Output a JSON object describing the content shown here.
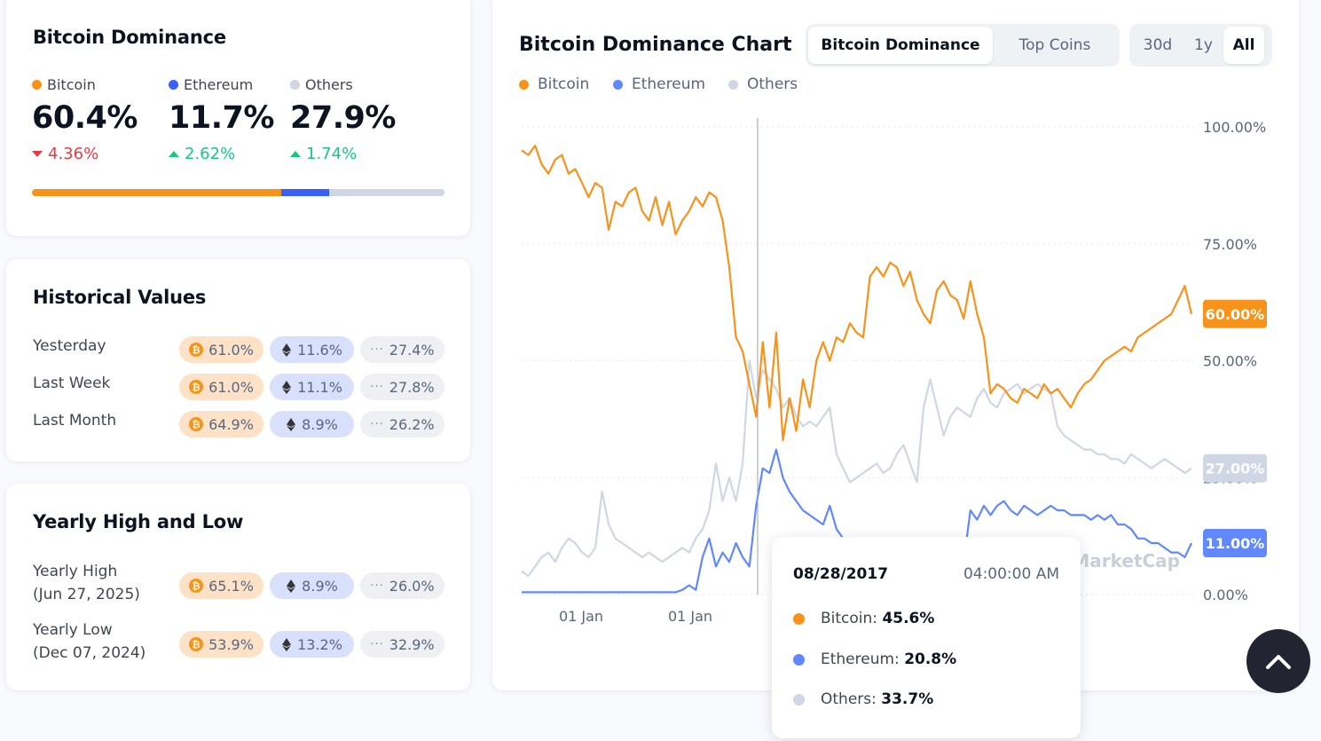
{
  "dominance": {
    "title": "Bitcoin Dominance",
    "items": [
      {
        "label": "Bitcoin",
        "value": "60.4%",
        "change": "4.36%",
        "direction": "down",
        "color": "#f7931a"
      },
      {
        "label": "Ethereum",
        "value": "11.7%",
        "change": "2.62%",
        "direction": "up",
        "color": "#3861fb"
      },
      {
        "label": "Others",
        "value": "27.9%",
        "change": "1.74%",
        "direction": "up",
        "color": "#cfd6e4"
      }
    ],
    "bar_fractions": [
      0.604,
      0.117,
      0.279
    ]
  },
  "historical": {
    "title": "Historical Values",
    "rows": [
      {
        "label": "Yesterday",
        "btc": "61.0%",
        "eth": "11.6%",
        "others": "27.4%"
      },
      {
        "label": "Last Week",
        "btc": "61.0%",
        "eth": "11.1%",
        "others": "27.8%"
      },
      {
        "label": "Last Month",
        "btc": "64.9%",
        "eth": "8.9%",
        "others": "26.2%"
      }
    ]
  },
  "yearly": {
    "title": "Yearly High and Low",
    "rows": [
      {
        "label": "Yearly High",
        "date": "(Jun 27, 2025)",
        "btc": "65.1%",
        "eth": "8.9%",
        "others": "26.0%"
      },
      {
        "label": "Yearly Low",
        "date": "(Dec 07, 2024)",
        "btc": "53.9%",
        "eth": "13.2%",
        "others": "32.9%"
      }
    ]
  },
  "chart_panel": {
    "title": "Bitcoin Dominance Chart",
    "view_tabs": [
      "Bitcoin Dominance",
      "Top Coins"
    ],
    "active_view": "Bitcoin Dominance",
    "range_tabs": [
      "30d",
      "1y",
      "All"
    ],
    "active_range": "All",
    "legend": [
      "Bitcoin",
      "Ethereum",
      "Others"
    ],
    "watermark": "CoinMarketCap",
    "tooltip": {
      "date": "08/28/2017",
      "time": "04:00:00 AM",
      "rows": [
        {
          "label": "Bitcoin:",
          "value": "45.6%",
          "color": "#f7931a"
        },
        {
          "label": "Ethereum:",
          "value": "20.8%",
          "color": "#6188ff"
        },
        {
          "label": "Others:",
          "value": "33.7%",
          "color": "#cfd6e4"
        }
      ]
    }
  },
  "chart_data": {
    "type": "line",
    "ylim": [
      0,
      100
    ],
    "y_ticks": [
      "100.00%",
      "75.00%",
      "50.00%",
      "25.00%",
      "0.00%"
    ],
    "x_ticks": [
      "01 Jan",
      "01 Jan"
    ],
    "last_value_labels": [
      "60.00%",
      "27.00%",
      "11.00%"
    ],
    "series": [
      {
        "name": "Bitcoin",
        "color": "#f7931a",
        "values": [
          95,
          94,
          96,
          92,
          90,
          93,
          94,
          90,
          91,
          88,
          85,
          88,
          87,
          78,
          84,
          83,
          86,
          87,
          82,
          80,
          85,
          79,
          84,
          77,
          80,
          82,
          85,
          83,
          86,
          85,
          80,
          70,
          55,
          52,
          45,
          38,
          54,
          40,
          56,
          33,
          42,
          35,
          46,
          40,
          50,
          54,
          50,
          55,
          54,
          58,
          56,
          55,
          68,
          70,
          68,
          71,
          70,
          66,
          69,
          63,
          60,
          58,
          65,
          67,
          64,
          63,
          59,
          67,
          60,
          55,
          43,
          45,
          44,
          42,
          41,
          44,
          43,
          42,
          45,
          43,
          44,
          42,
          40,
          43,
          45,
          46,
          48,
          50,
          51,
          52,
          53,
          52,
          55,
          56,
          57,
          58,
          59,
          60,
          63,
          66,
          60
        ]
      },
      {
        "name": "Ethereum",
        "color": "#6188ff",
        "values": [
          0.5,
          0.5,
          0.5,
          0.5,
          0.5,
          0.5,
          0.5,
          0.5,
          0.5,
          0.5,
          0.5,
          0.5,
          0.5,
          0.5,
          0.5,
          0.5,
          0.5,
          0.5,
          0.5,
          0.5,
          0.5,
          0.5,
          0.5,
          0.5,
          1,
          2,
          1,
          8,
          12,
          6,
          9,
          7,
          11,
          8,
          6,
          19,
          27,
          26,
          31,
          25,
          22,
          20,
          18,
          17,
          16,
          15,
          19,
          14,
          12,
          11,
          10,
          9,
          9,
          8,
          8,
          8,
          7,
          7,
          7,
          7,
          12,
          9,
          10,
          10,
          9,
          8,
          7,
          18,
          16,
          19,
          17,
          19,
          20,
          18,
          17,
          19,
          18,
          17,
          18,
          19,
          18,
          18,
          17,
          17,
          17,
          16,
          17,
          16,
          17,
          15,
          15,
          14,
          12,
          12,
          11,
          11,
          10,
          9,
          9,
          8,
          11
        ]
      },
      {
        "name": "Others",
        "color": "#cfd6e4",
        "values": [
          5,
          4,
          6,
          8,
          9,
          7,
          10,
          12,
          11,
          9,
          8,
          10,
          22,
          15,
          12,
          11,
          10,
          9,
          8,
          9,
          8,
          7,
          8,
          9,
          10,
          9,
          12,
          14,
          18,
          28,
          20,
          25,
          20,
          28,
          50,
          42,
          48,
          46,
          44,
          40,
          42,
          38,
          36,
          37,
          36,
          38,
          40,
          30,
          27,
          24,
          25,
          26,
          27,
          28,
          26,
          27,
          30,
          32,
          28,
          24,
          40,
          46,
          40,
          34,
          38,
          40,
          39,
          38,
          42,
          44,
          41,
          40,
          43,
          44,
          45,
          43,
          44,
          45,
          44,
          43,
          36,
          34,
          33,
          32,
          31,
          31,
          30,
          30,
          29,
          29,
          28,
          30,
          29,
          28,
          27,
          28,
          29,
          28,
          27,
          26,
          27
        ]
      }
    ]
  }
}
